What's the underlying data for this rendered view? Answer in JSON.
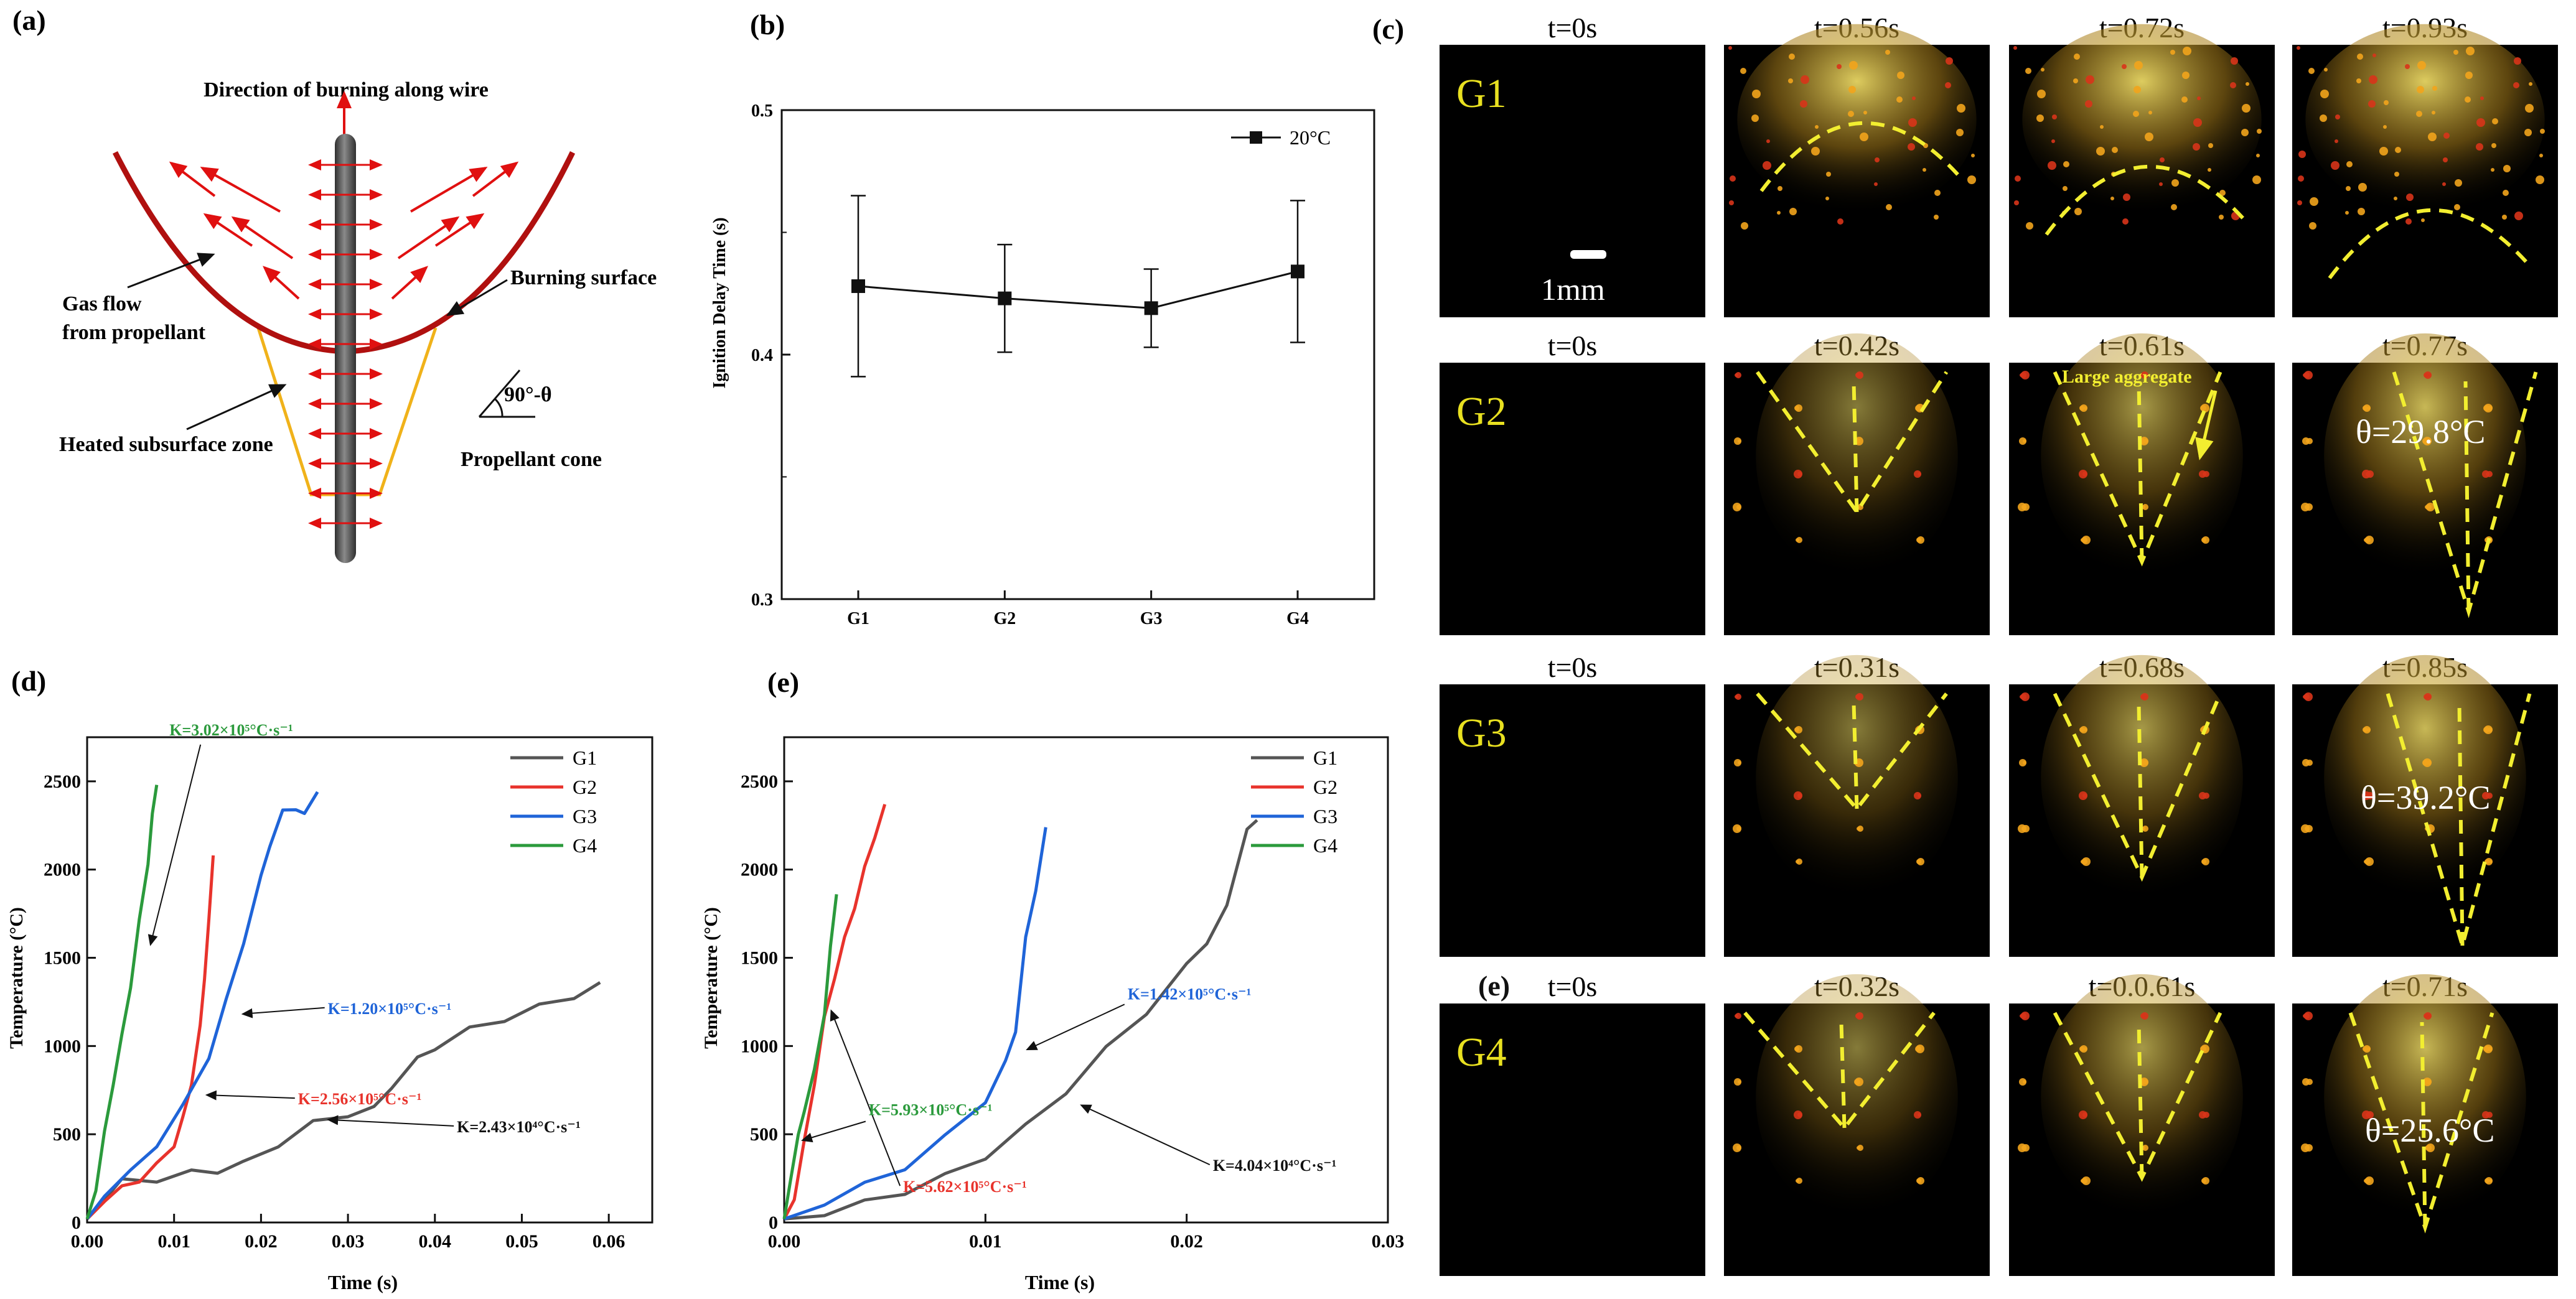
{
  "panels": {
    "a": {
      "label": "(a)",
      "title": "Direction of burning along wire",
      "labels": {
        "gas_flow_1": "Gas flow",
        "gas_flow_2": "from propellant",
        "burning_surface": "Burning surface",
        "heated_zone": "Heated subsurface zone",
        "angle": "90°-θ",
        "cone": "Propellant cone"
      },
      "colors": {
        "surface": "#b0100f",
        "subsurface": "#f0b21a",
        "wire": "#4a4a4a",
        "arrows": "#e01010"
      }
    },
    "c": {
      "label": "(c)",
      "scale_bar": "1mm",
      "rows": [
        {
          "name": "G1",
          "times": [
            "t=0s",
            "t=0.56s",
            "t=0.72s",
            "t=0.93s"
          ],
          "annotations": []
        },
        {
          "name": "G2",
          "times": [
            "t=0s",
            "t=0.42s",
            "t=0.61s",
            "t=0.77s"
          ],
          "annotations": [
            "Large aggregate",
            "θ=29.8°C"
          ]
        },
        {
          "name": "G3",
          "times": [
            "t=0s",
            "t=0.31s",
            "t=0.68s",
            "t=0.85s"
          ],
          "annotations": [
            "θ=39.2°C"
          ]
        },
        {
          "name": "G4",
          "row_label": "(e)",
          "times": [
            "t=0s",
            "t=0.32s",
            "t=0.0.61s",
            "t=0.71s"
          ],
          "annotations": [
            "θ=25.6°C"
          ]
        }
      ],
      "colors": {
        "label": "#e8e020",
        "dash": "#f2ee30",
        "annotation": "#f2ee30"
      }
    }
  },
  "chart_data": [
    {
      "id": "b",
      "label": "(b)",
      "type": "line",
      "categories": [
        "G1",
        "G2",
        "G3",
        "G4"
      ],
      "series": [
        {
          "name": "20°C",
          "values": [
            0.428,
            0.423,
            0.419,
            0.434
          ],
          "errors": [
            0.037,
            0.022,
            0.016,
            0.029
          ]
        }
      ],
      "xlabel": "",
      "ylabel": "Ignition Delay Time (s)",
      "ylim": [
        0.3,
        0.5
      ],
      "yticks": [
        "0.3",
        "0.4",
        "0.5"
      ],
      "legend": "top-right"
    },
    {
      "id": "d",
      "label": "(d)",
      "type": "line",
      "xlabel": "Time (s)",
      "ylabel": "Temperature (°C)",
      "xlim": [
        0,
        0.065
      ],
      "ylim": [
        0,
        2750
      ],
      "xticks": [
        "0.00",
        "0.01",
        "0.02",
        "0.03",
        "0.04",
        "0.05",
        "0.06"
      ],
      "yticks": [
        "0",
        "500",
        "1000",
        "1500",
        "2000",
        "2500"
      ],
      "legend": "top-right",
      "series": [
        {
          "name": "G1",
          "color": "#555555",
          "points": [
            [
              0,
              20
            ],
            [
              0.002,
              150
            ],
            [
              0.004,
              230
            ],
            [
              0.008,
              250
            ],
            [
              0.012,
              280
            ],
            [
              0.015,
              300
            ],
            [
              0.018,
              330
            ],
            [
              0.022,
              450
            ],
            [
              0.026,
              560
            ],
            [
              0.03,
              620
            ],
            [
              0.033,
              640
            ],
            [
              0.035,
              780
            ],
            [
              0.038,
              920
            ],
            [
              0.04,
              1000
            ],
            [
              0.044,
              1090
            ],
            [
              0.048,
              1160
            ],
            [
              0.052,
              1220
            ],
            [
              0.056,
              1290
            ],
            [
              0.059,
              1360
            ]
          ]
        },
        {
          "name": "G2",
          "color": "#e8332c",
          "points": [
            [
              0,
              20
            ],
            [
              0.002,
              140
            ],
            [
              0.004,
              190
            ],
            [
              0.006,
              250
            ],
            [
              0.008,
              320
            ],
            [
              0.01,
              450
            ],
            [
              0.011,
              580
            ],
            [
              0.012,
              800
            ],
            [
              0.013,
              1100
            ],
            [
              0.0135,
              1400
            ],
            [
              0.014,
              1700
            ],
            [
              0.0145,
              2080
            ]
          ]
        },
        {
          "name": "G3",
          "color": "#1f64d8",
          "points": [
            [
              0,
              20
            ],
            [
              0.002,
              170
            ],
            [
              0.005,
              280
            ],
            [
              0.008,
              450
            ],
            [
              0.011,
              650
            ],
            [
              0.014,
              950
            ],
            [
              0.016,
              1250
            ],
            [
              0.018,
              1600
            ],
            [
              0.02,
              1950
            ],
            [
              0.021,
              2150
            ],
            [
              0.0225,
              2320
            ],
            [
              0.024,
              2360
            ],
            [
              0.025,
              2300
            ],
            [
              0.0265,
              2440
            ]
          ]
        },
        {
          "name": "G4",
          "color": "#2b9a3c",
          "points": [
            [
              0,
              20
            ],
            [
              0.001,
              200
            ],
            [
              0.002,
              500
            ],
            [
              0.003,
              800
            ],
            [
              0.004,
              1050
            ],
            [
              0.005,
              1350
            ],
            [
              0.006,
              1700
            ],
            [
              0.007,
              2050
            ],
            [
              0.0075,
              2300
            ],
            [
              0.008,
              2480
            ]
          ]
        }
      ],
      "annotations": [
        {
          "text": "K=3.02×10⁵°C·s⁻¹",
          "series": "G4",
          "at": [
            0.0066,
            1580
          ]
        },
        {
          "text": "K=1.20×10⁵°C·s⁻¹",
          "series": "G3",
          "at": [
            0.0173,
            1210
          ]
        },
        {
          "text": "K=2.56×10⁵°C·s⁻¹",
          "series": "G2",
          "at": [
            0.0128,
            740
          ]
        },
        {
          "text": "K=2.43×10⁴°C·s⁻¹",
          "series": "G1",
          "at": [
            0.0275,
            600
          ]
        }
      ]
    },
    {
      "id": "e",
      "label": "(e)",
      "type": "line",
      "xlabel": "Time (s)",
      "ylabel": "Temperature (°C)",
      "xlim": [
        0,
        0.03
      ],
      "ylim": [
        0,
        2750
      ],
      "xticks": [
        "0.00",
        "0.01",
        "0.02",
        "0.03"
      ],
      "yticks": [
        "0",
        "500",
        "1000",
        "1500",
        "2000",
        "2500"
      ],
      "legend": "top-right",
      "series": [
        {
          "name": "G1",
          "color": "#555555",
          "points": [
            [
              0,
              20
            ],
            [
              0.002,
              60
            ],
            [
              0.004,
              110
            ],
            [
              0.006,
              180
            ],
            [
              0.008,
              260
            ],
            [
              0.01,
              380
            ],
            [
              0.012,
              540
            ],
            [
              0.014,
              750
            ],
            [
              0.016,
              980
            ],
            [
              0.018,
              1200
            ],
            [
              0.02,
              1450
            ],
            [
              0.021,
              1600
            ],
            [
              0.022,
              1780
            ],
            [
              0.023,
              2250
            ],
            [
              0.0235,
              2280
            ]
          ]
        },
        {
          "name": "G2",
          "color": "#e8332c",
          "points": [
            [
              0,
              20
            ],
            [
              0.0005,
              150
            ],
            [
              0.001,
              450
            ],
            [
              0.0015,
              800
            ],
            [
              0.002,
              1150
            ],
            [
              0.0025,
              1400
            ],
            [
              0.003,
              1600
            ],
            [
              0.0035,
              1800
            ],
            [
              0.004,
              2000
            ],
            [
              0.0045,
              2200
            ],
            [
              0.005,
              2370
            ]
          ]
        },
        {
          "name": "G3",
          "color": "#1f64d8",
          "points": [
            [
              0,
              20
            ],
            [
              0.002,
              120
            ],
            [
              0.004,
              210
            ],
            [
              0.006,
              320
            ],
            [
              0.008,
              480
            ],
            [
              0.01,
              700
            ],
            [
              0.011,
              900
            ],
            [
              0.0115,
              1100
            ],
            [
              0.012,
              1600
            ],
            [
              0.0125,
              1900
            ],
            [
              0.013,
              2240
            ]
          ]
        },
        {
          "name": "G4",
          "color": "#2b9a3c",
          "points": [
            [
              0,
              20
            ],
            [
              0.0003,
              250
            ],
            [
              0.0007,
              480
            ],
            [
              0.001,
              650
            ],
            [
              0.0015,
              850
            ],
            [
              0.002,
              1200
            ],
            [
              0.0023,
              1550
            ],
            [
              0.0026,
              1860
            ]
          ]
        }
      ],
      "annotations": [
        {
          "text": "K=1.42×10⁵°C·s⁻¹",
          "series": "G3",
          "at": [
            0.0115,
            1000
          ]
        },
        {
          "text": "K=5.62×10⁵°C·s⁻¹",
          "series": "G2",
          "at": [
            0.0022,
            1230
          ]
        },
        {
          "text": "K=5.93×10⁵°C·s⁻¹",
          "series": "G4",
          "at": [
            0.0008,
            520
          ]
        },
        {
          "text": "K=4.04×10⁴°C·s⁻¹",
          "series": "G1",
          "at": [
            0.0145,
            680
          ]
        }
      ]
    }
  ]
}
